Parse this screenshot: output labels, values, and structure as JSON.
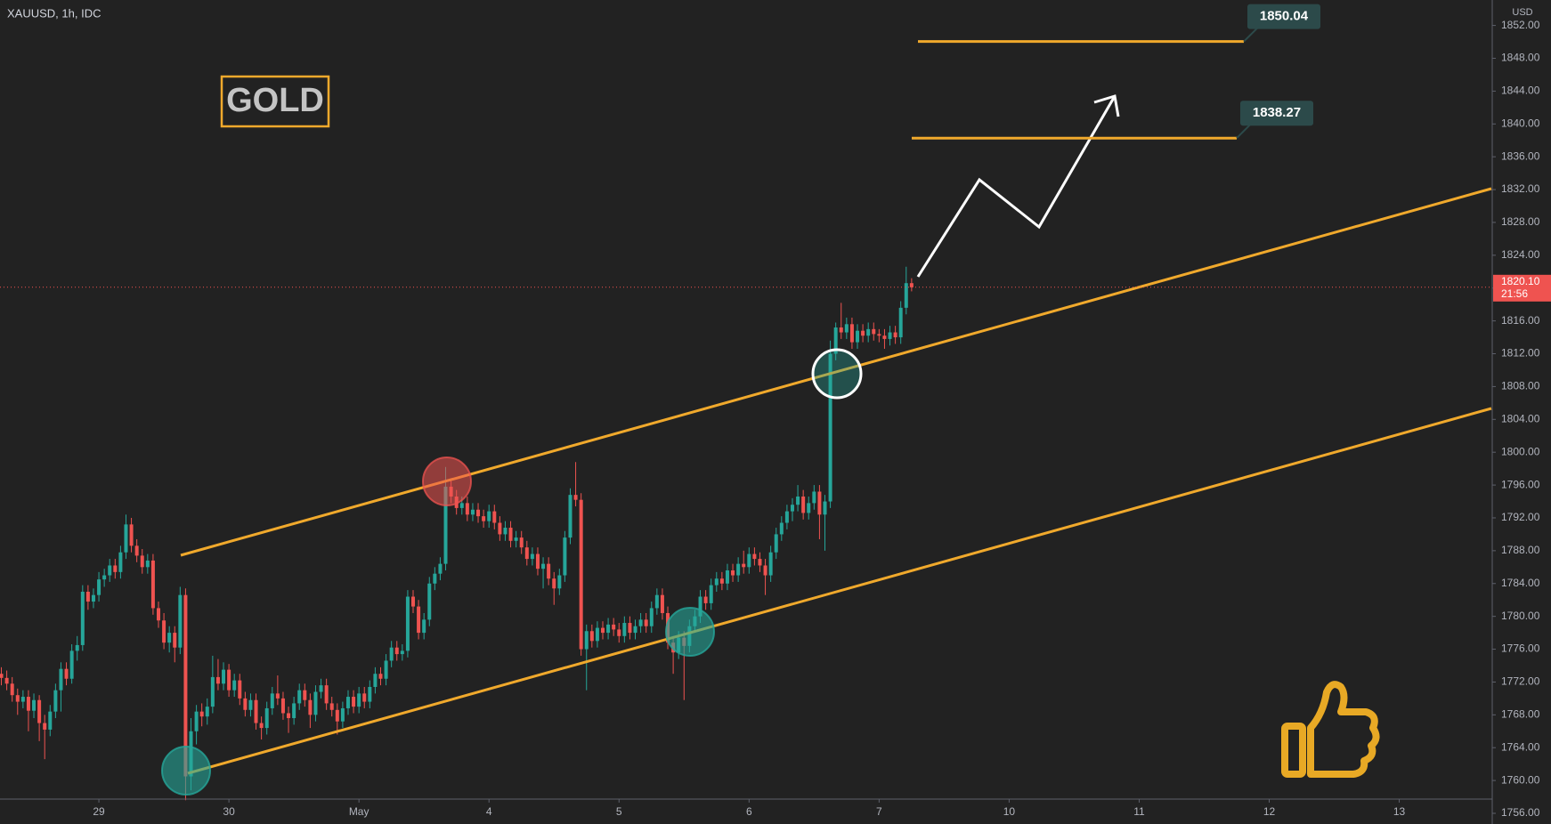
{
  "chart_data": {
    "type": "candlestick",
    "title": "XAUUSD, 1h, IDC",
    "annotation": "GOLD",
    "y_axis_unit": "USD",
    "countdown": "21:56",
    "last_price": {
      "value": 1820.1,
      "label": "1820.10"
    },
    "levels": [
      1850.04,
      1838.27
    ],
    "up_color": "#26a69a",
    "down_color": "#ef5350",
    "level_color": "#f0a92c",
    "xlim": [
      -0.25,
      275
    ],
    "ylim": [
      1754.7,
      1855.1
    ],
    "xticks": [
      {
        "value": 18,
        "label": "29"
      },
      {
        "value": 42,
        "label": "30"
      },
      {
        "value": 66,
        "label": "May"
      },
      {
        "value": 90,
        "label": "4"
      },
      {
        "value": 114,
        "label": "5"
      },
      {
        "value": 138,
        "label": "6"
      },
      {
        "value": 162,
        "label": "7"
      },
      {
        "value": 186,
        "label": "10"
      },
      {
        "value": 210,
        "label": "11"
      },
      {
        "value": 234,
        "label": "12"
      },
      {
        "value": 258,
        "label": "13"
      }
    ],
    "yticks": [
      {
        "value": 1756,
        "label": "1756.00"
      },
      {
        "value": 1760,
        "label": "1760.00"
      },
      {
        "value": 1764,
        "label": "1764.00"
      },
      {
        "value": 1768,
        "label": "1768.00"
      },
      {
        "value": 1772,
        "label": "1772.00"
      },
      {
        "value": 1776,
        "label": "1776.00"
      },
      {
        "value": 1780,
        "label": "1780.00"
      },
      {
        "value": 1784,
        "label": "1784.00"
      },
      {
        "value": 1788,
        "label": "1788.00"
      },
      {
        "value": 1792,
        "label": "1792.00"
      },
      {
        "value": 1796,
        "label": "1796.00"
      },
      {
        "value": 1800,
        "label": "1800.00"
      },
      {
        "value": 1804,
        "label": "1804.00"
      },
      {
        "value": 1808,
        "label": "1808.00"
      },
      {
        "value": 1812,
        "label": "1812.00"
      },
      {
        "value": 1816,
        "label": "1816.00"
      },
      {
        "value": 1820,
        "label": "1820.00"
      },
      {
        "value": 1824,
        "label": "1824.00"
      },
      {
        "value": 1828,
        "label": "1828.00"
      },
      {
        "value": 1832,
        "label": "1832.00"
      },
      {
        "value": 1836,
        "label": "1836.00"
      },
      {
        "value": 1840,
        "label": "1840.00"
      },
      {
        "value": 1844,
        "label": "1844.00"
      },
      {
        "value": 1848,
        "label": "1848.00"
      },
      {
        "value": 1852,
        "label": "1852.00"
      }
    ],
    "x": [
      0,
      1,
      2,
      3,
      4,
      5,
      6,
      7,
      8,
      9,
      10,
      11,
      12,
      13,
      14,
      15,
      16,
      17,
      18,
      19,
      20,
      21,
      22,
      23,
      24,
      25,
      26,
      27,
      28,
      29,
      30,
      31,
      32,
      33,
      34,
      35,
      36,
      37,
      38,
      39,
      40,
      41,
      42,
      43,
      44,
      45,
      46,
      47,
      48,
      49,
      50,
      51,
      52,
      53,
      54,
      55,
      56,
      57,
      58,
      59,
      60,
      61,
      62,
      63,
      64,
      65,
      66,
      67,
      68,
      69,
      70,
      71,
      72,
      73,
      74,
      75,
      76,
      77,
      78,
      79,
      80,
      81,
      82,
      83,
      84,
      85,
      86,
      87,
      88,
      89,
      90,
      91,
      92,
      93,
      94,
      95,
      96,
      97,
      98,
      99,
      100,
      101,
      102,
      103,
      104,
      105,
      106,
      107,
      108,
      109,
      110,
      111,
      112,
      113,
      114,
      115,
      116,
      117,
      118,
      119,
      120,
      121,
      122,
      123,
      124,
      125,
      126,
      127,
      128,
      129,
      130,
      131,
      132,
      133,
      134,
      135,
      136,
      137,
      138,
      139,
      140,
      141,
      142,
      143,
      144,
      145,
      146,
      147,
      148,
      149,
      150,
      151,
      152,
      153,
      154,
      155,
      156,
      157,
      158,
      159,
      160,
      161,
      162,
      163,
      164,
      165,
      166,
      167,
      168
    ],
    "open": [
      1773.0,
      1772.5,
      1771.8,
      1770.4,
      1769.6,
      1770.2,
      1768.5,
      1769.8,
      1767.0,
      1766.2,
      1768.4,
      1771.0,
      1773.6,
      1772.4,
      1775.8,
      1776.5,
      1783.0,
      1781.8,
      1782.6,
      1784.5,
      1785.0,
      1786.2,
      1785.4,
      1787.8,
      1791.2,
      1788.6,
      1787.4,
      1786.0,
      1786.8,
      1781.0,
      1779.5,
      1776.8,
      1778.0,
      1776.2,
      1782.6,
      1760.5,
      1766.0,
      1768.4,
      1767.8,
      1769.0,
      1772.6,
      1771.8,
      1773.5,
      1771.0,
      1772.2,
      1770.0,
      1768.6,
      1769.8,
      1767.0,
      1766.4,
      1768.8,
      1770.6,
      1770.0,
      1768.2,
      1767.6,
      1769.4,
      1771.0,
      1769.8,
      1768.0,
      1770.8,
      1771.6,
      1769.4,
      1768.6,
      1767.2,
      1768.8,
      1770.2,
      1769.0,
      1770.6,
      1769.6,
      1771.4,
      1773.0,
      1772.4,
      1774.6,
      1776.2,
      1775.4,
      1775.8,
      1782.4,
      1781.2,
      1778.0,
      1779.6,
      1784.0,
      1785.2,
      1786.4,
      1795.8,
      1794.6,
      1793.2,
      1793.8,
      1792.4,
      1793.0,
      1792.2,
      1791.6,
      1792.8,
      1791.4,
      1790.0,
      1790.8,
      1789.2,
      1789.6,
      1788.4,
      1787.0,
      1787.6,
      1785.8,
      1786.4,
      1784.6,
      1783.4,
      1785.0,
      1789.6,
      1794.8,
      1794.2,
      1776.0,
      1778.2,
      1777.0,
      1778.6,
      1778.0,
      1779.0,
      1778.4,
      1777.6,
      1779.2,
      1778.0,
      1778.8,
      1779.6,
      1778.8,
      1781.0,
      1782.6,
      1780.4,
      1776.8,
      1775.6,
      1777.4,
      1776.4,
      1778.8,
      1780.0,
      1782.4,
      1781.6,
      1783.8,
      1784.6,
      1784.0,
      1785.6,
      1785.0,
      1786.4,
      1786.0,
      1787.6,
      1787.0,
      1786.2,
      1785.0,
      1787.8,
      1790.0,
      1791.4,
      1792.8,
      1793.6,
      1794.6,
      1792.6,
      1793.8,
      1795.2,
      1792.4,
      1794.0,
      1812.0,
      1815.2,
      1814.6,
      1815.6,
      1813.4,
      1814.8,
      1814.2,
      1815.0,
      1814.4,
      1814.2,
      1813.8,
      1814.6,
      1814.0,
      1817.6,
      1820.6
    ],
    "high": [
      1773.8,
      1773.4,
      1772.6,
      1771.2,
      1771.0,
      1771.0,
      1770.6,
      1770.4,
      1768.0,
      1769.2,
      1771.8,
      1774.4,
      1774.4,
      1776.6,
      1777.6,
      1783.8,
      1783.8,
      1783.4,
      1785.4,
      1785.8,
      1787.0,
      1787.0,
      1788.6,
      1792.4,
      1792.0,
      1789.4,
      1788.2,
      1787.6,
      1787.6,
      1781.8,
      1780.4,
      1778.8,
      1778.8,
      1783.6,
      1783.4,
      1767.6,
      1769.2,
      1769.4,
      1770.0,
      1775.2,
      1774.8,
      1774.4,
      1774.2,
      1773.0,
      1773.0,
      1770.8,
      1770.6,
      1770.6,
      1767.8,
      1769.6,
      1771.4,
      1772.8,
      1770.8,
      1769.0,
      1770.2,
      1771.8,
      1771.8,
      1770.6,
      1771.6,
      1772.4,
      1772.4,
      1770.2,
      1769.4,
      1769.6,
      1771.0,
      1771.0,
      1771.4,
      1771.4,
      1772.2,
      1773.8,
      1773.8,
      1775.4,
      1777.0,
      1777.0,
      1776.6,
      1783.2,
      1783.2,
      1782.0,
      1780.4,
      1784.8,
      1786.0,
      1787.2,
      1798.2,
      1796.8,
      1795.4,
      1794.6,
      1794.6,
      1793.8,
      1793.8,
      1793.0,
      1793.6,
      1793.6,
      1792.2,
      1791.6,
      1791.6,
      1790.4,
      1790.4,
      1789.2,
      1788.4,
      1788.4,
      1787.2,
      1787.2,
      1785.4,
      1785.8,
      1790.4,
      1795.6,
      1798.8,
      1795.0,
      1779.0,
      1779.0,
      1779.4,
      1779.4,
      1779.8,
      1779.8,
      1779.2,
      1780.0,
      1780.0,
      1779.6,
      1780.4,
      1780.4,
      1781.8,
      1783.4,
      1783.4,
      1781.2,
      1777.6,
      1778.2,
      1778.2,
      1779.6,
      1780.8,
      1783.2,
      1783.2,
      1784.6,
      1785.4,
      1785.4,
      1786.4,
      1786.4,
      1787.2,
      1788.0,
      1788.4,
      1788.4,
      1787.8,
      1787.0,
      1788.6,
      1790.8,
      1792.2,
      1793.6,
      1794.4,
      1796.0,
      1795.4,
      1794.6,
      1796.0,
      1796.0,
      1794.8,
      1813.6,
      1815.8,
      1818.2,
      1816.4,
      1816.4,
      1815.6,
      1815.6,
      1815.8,
      1815.8,
      1815.0,
      1815.0,
      1815.4,
      1815.4,
      1818.4,
      1822.6,
      1821.2
    ],
    "low": [
      1771.6,
      1771.0,
      1769.6,
      1768.0,
      1768.8,
      1766.0,
      1767.6,
      1764.8,
      1762.6,
      1765.4,
      1767.6,
      1768.4,
      1771.6,
      1771.8,
      1774.6,
      1775.8,
      1780.8,
      1781.0,
      1781.8,
      1783.6,
      1784.2,
      1784.6,
      1784.6,
      1787.0,
      1787.8,
      1786.6,
      1785.2,
      1785.2,
      1780.2,
      1778.6,
      1776.0,
      1775.6,
      1774.4,
      1775.4,
      1757.6,
      1758.8,
      1764.4,
      1766.6,
      1766.8,
      1768.2,
      1771.0,
      1771.0,
      1770.2,
      1770.2,
      1769.2,
      1767.8,
      1767.8,
      1766.2,
      1765.0,
      1765.6,
      1768.0,
      1769.2,
      1767.4,
      1765.8,
      1766.8,
      1768.6,
      1769.0,
      1766.4,
      1767.2,
      1770.0,
      1768.6,
      1767.8,
      1765.6,
      1766.4,
      1768.0,
      1768.2,
      1768.2,
      1768.8,
      1768.8,
      1770.6,
      1771.6,
      1771.6,
      1773.8,
      1774.6,
      1774.6,
      1775.0,
      1780.4,
      1777.2,
      1777.2,
      1778.8,
      1783.2,
      1784.4,
      1785.6,
      1793.8,
      1792.4,
      1792.4,
      1791.6,
      1791.6,
      1791.4,
      1790.8,
      1790.8,
      1790.6,
      1789.2,
      1789.2,
      1788.4,
      1788.4,
      1787.6,
      1786.2,
      1786.2,
      1785.0,
      1783.4,
      1783.8,
      1781.4,
      1782.6,
      1784.2,
      1788.8,
      1793.4,
      1775.2,
      1771.0,
      1776.2,
      1776.2,
      1777.2,
      1777.2,
      1777.6,
      1776.8,
      1776.8,
      1777.2,
      1777.2,
      1778.0,
      1778.0,
      1778.0,
      1780.2,
      1779.6,
      1776.0,
      1773.0,
      1774.8,
      1769.8,
      1775.6,
      1778.0,
      1779.2,
      1780.8,
      1780.8,
      1783.0,
      1783.2,
      1783.2,
      1784.2,
      1784.2,
      1785.2,
      1785.2,
      1786.2,
      1785.4,
      1782.6,
      1784.2,
      1787.0,
      1789.2,
      1790.6,
      1791.6,
      1792.8,
      1791.8,
      1791.8,
      1793.0,
      1789.4,
      1788.0,
      1793.2,
      1811.2,
      1813.8,
      1813.8,
      1812.6,
      1812.6,
      1813.4,
      1813.4,
      1813.6,
      1813.4,
      1812.6,
      1813.0,
      1813.2,
      1813.2,
      1816.8,
      1819.6
    ],
    "close": [
      1772.5,
      1771.8,
      1770.4,
      1769.6,
      1770.2,
      1768.5,
      1769.8,
      1767.0,
      1766.2,
      1768.4,
      1771.0,
      1773.6,
      1772.4,
      1775.8,
      1776.5,
      1783.0,
      1781.8,
      1782.6,
      1784.5,
      1785.0,
      1786.2,
      1785.4,
      1787.8,
      1791.2,
      1788.6,
      1787.4,
      1786.0,
      1786.8,
      1781.0,
      1779.5,
      1776.8,
      1778.0,
      1776.2,
      1782.6,
      1760.5,
      1766.0,
      1768.4,
      1767.8,
      1769.0,
      1772.6,
      1771.8,
      1773.5,
      1771.0,
      1772.2,
      1770.0,
      1768.6,
      1769.8,
      1767.0,
      1766.4,
      1768.8,
      1770.6,
      1770.0,
      1768.2,
      1767.6,
      1769.4,
      1771.0,
      1769.8,
      1768.0,
      1770.8,
      1771.6,
      1769.4,
      1768.6,
      1767.2,
      1768.8,
      1770.2,
      1769.0,
      1770.6,
      1769.6,
      1771.4,
      1773.0,
      1772.4,
      1774.6,
      1776.2,
      1775.4,
      1775.8,
      1782.4,
      1781.2,
      1778.0,
      1779.6,
      1784.0,
      1785.2,
      1786.4,
      1795.8,
      1794.6,
      1793.2,
      1793.8,
      1792.4,
      1793.0,
      1792.2,
      1791.6,
      1792.8,
      1791.4,
      1790.0,
      1790.8,
      1789.2,
      1789.6,
      1788.4,
      1787.0,
      1787.6,
      1785.8,
      1786.4,
      1784.6,
      1783.4,
      1785.0,
      1789.6,
      1794.8,
      1794.2,
      1776.0,
      1778.2,
      1777.0,
      1778.6,
      1778.0,
      1779.0,
      1778.4,
      1777.6,
      1779.2,
      1778.0,
      1778.8,
      1779.6,
      1778.8,
      1781.0,
      1782.6,
      1780.4,
      1776.8,
      1775.6,
      1777.4,
      1776.4,
      1778.8,
      1780.0,
      1782.4,
      1781.6,
      1783.8,
      1784.6,
      1784.0,
      1785.6,
      1785.0,
      1786.4,
      1786.0,
      1787.6,
      1787.0,
      1786.2,
      1785.0,
      1787.8,
      1790.0,
      1791.4,
      1792.8,
      1793.6,
      1794.6,
      1792.6,
      1793.8,
      1795.2,
      1792.4,
      1794.0,
      1812.0,
      1815.2,
      1814.6,
      1815.6,
      1813.4,
      1814.8,
      1814.2,
      1815.0,
      1814.4,
      1814.2,
      1813.8,
      1814.6,
      1814.0,
      1817.6,
      1820.6,
      1820.1
    ]
  }
}
